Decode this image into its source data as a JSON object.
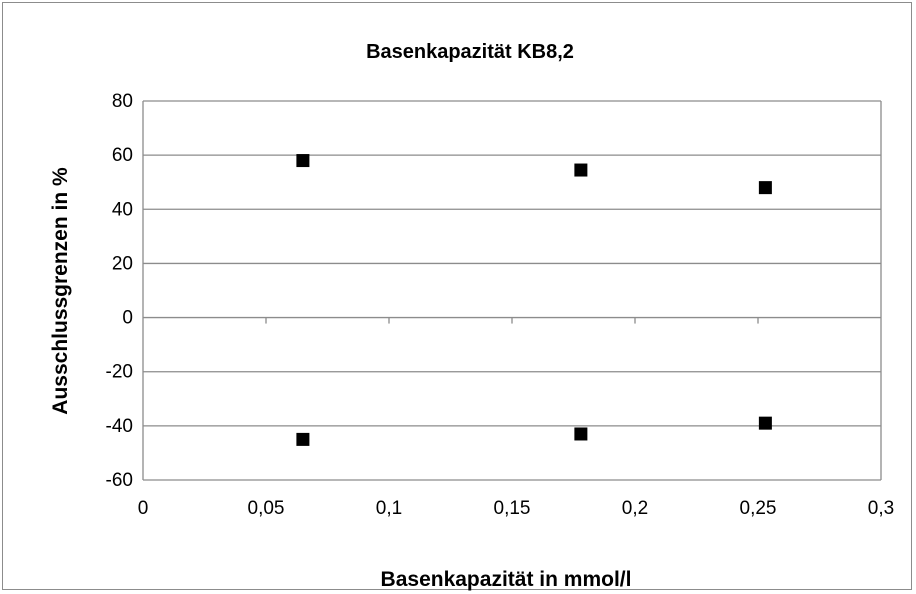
{
  "chart_data": {
    "type": "scatter",
    "title": "Basenkapazität KB8,2",
    "xlabel": "Basenkapazität in mmol/l",
    "ylabel": "Ausschlussgrenzen in %",
    "xlim": [
      0,
      0.3
    ],
    "ylim": [
      -60,
      80
    ],
    "x_ticks": [
      0,
      0.05,
      0.1,
      0.15,
      0.2,
      0.25,
      0.3
    ],
    "x_tick_labels": [
      "0",
      "0,05",
      "0,1",
      "0,15",
      "0,2",
      "0,25",
      "0,3"
    ],
    "y_ticks": [
      80,
      60,
      40,
      20,
      0,
      -20,
      -40,
      -60
    ],
    "y_tick_labels": [
      "80",
      "60",
      "40",
      "20",
      "0",
      "-20",
      "-40",
      "-60"
    ],
    "grid": "horizontal",
    "legend": "none",
    "marker": "square",
    "marker_color": "#000000",
    "series": [
      {
        "x": [
          0.065,
          0.178,
          0.253
        ],
        "y": [
          58,
          54.5,
          48
        ]
      },
      {
        "x": [
          0.065,
          0.178,
          0.253
        ],
        "y": [
          -45,
          -43,
          -39
        ]
      }
    ]
  }
}
